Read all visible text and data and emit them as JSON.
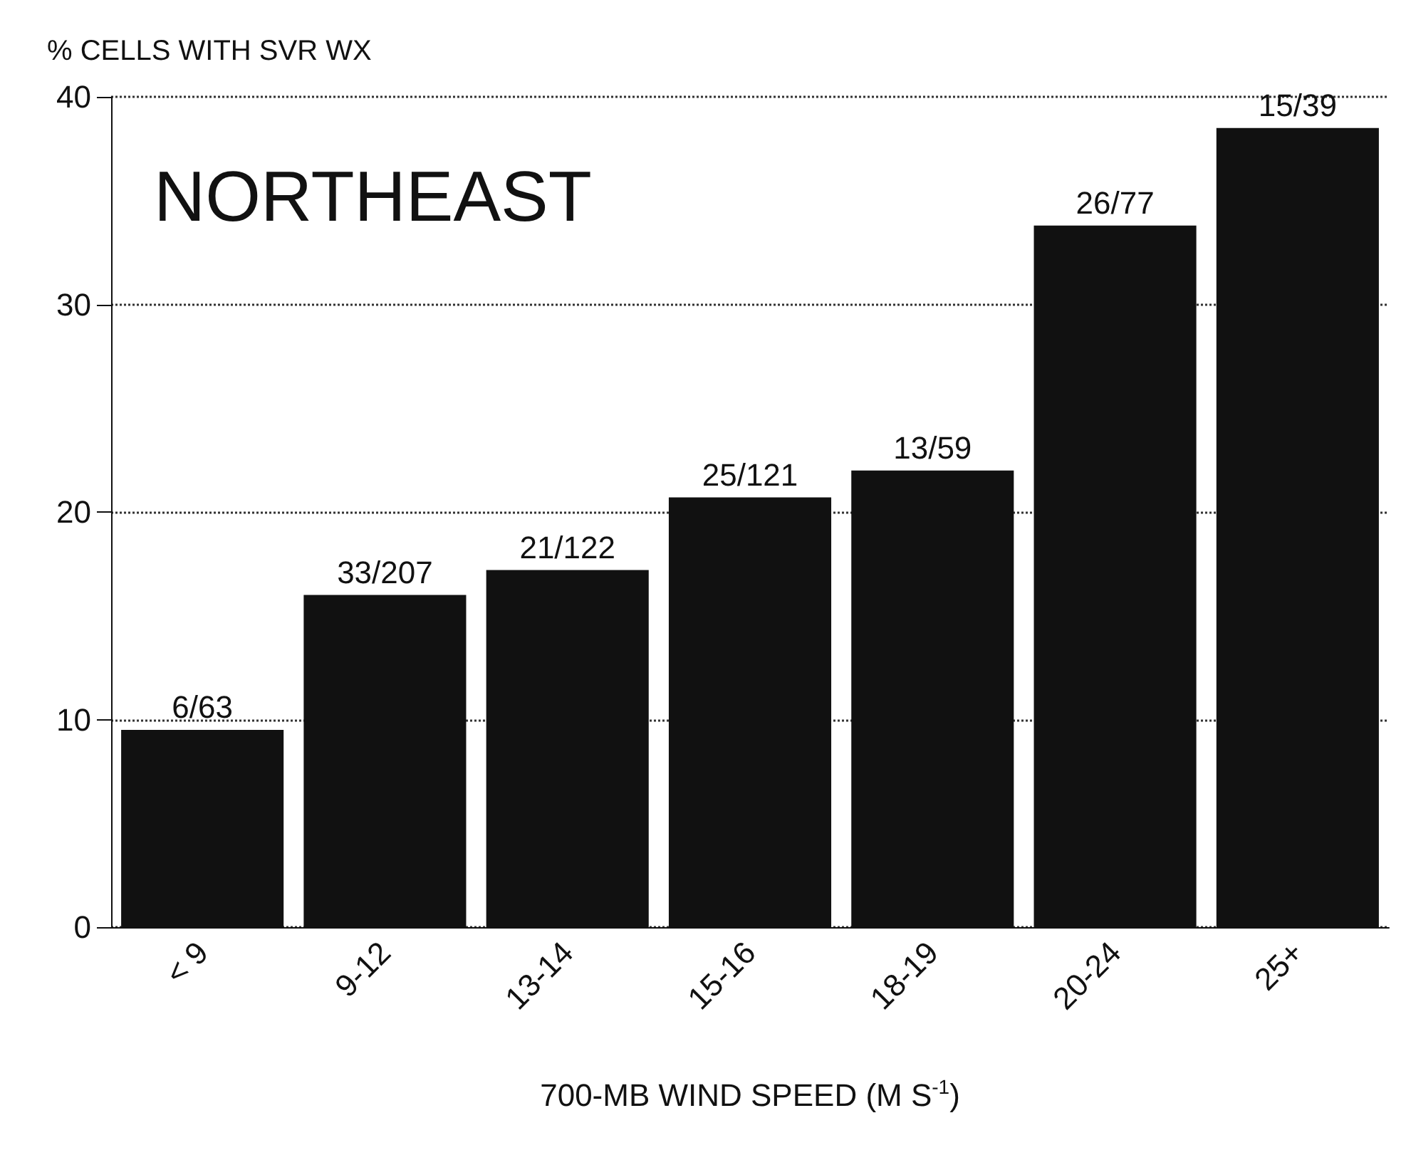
{
  "chart_data": {
    "type": "bar",
    "ylabel": "% CELLS WITH SVR WX",
    "xlabel": "700-MB WIND SPEED (M S$^{-1}$)",
    "annotations": [
      "NORTHEAST"
    ],
    "categories": [
      "< 9",
      "9-12",
      "13-14",
      "15-16",
      "18-19",
      "20-24",
      "25+"
    ],
    "values": [
      9.5,
      16,
      17.2,
      20.7,
      22,
      33.8,
      38.5
    ],
    "value_labels": [
      "6/63",
      "33/207",
      "21/122",
      "25/121",
      "13/59",
      "26/77",
      "15/39"
    ],
    "color": "#111111",
    "ylim": [
      0,
      40
    ],
    "yticks": [
      0,
      10,
      20,
      30,
      40
    ],
    "grid": "y"
  }
}
